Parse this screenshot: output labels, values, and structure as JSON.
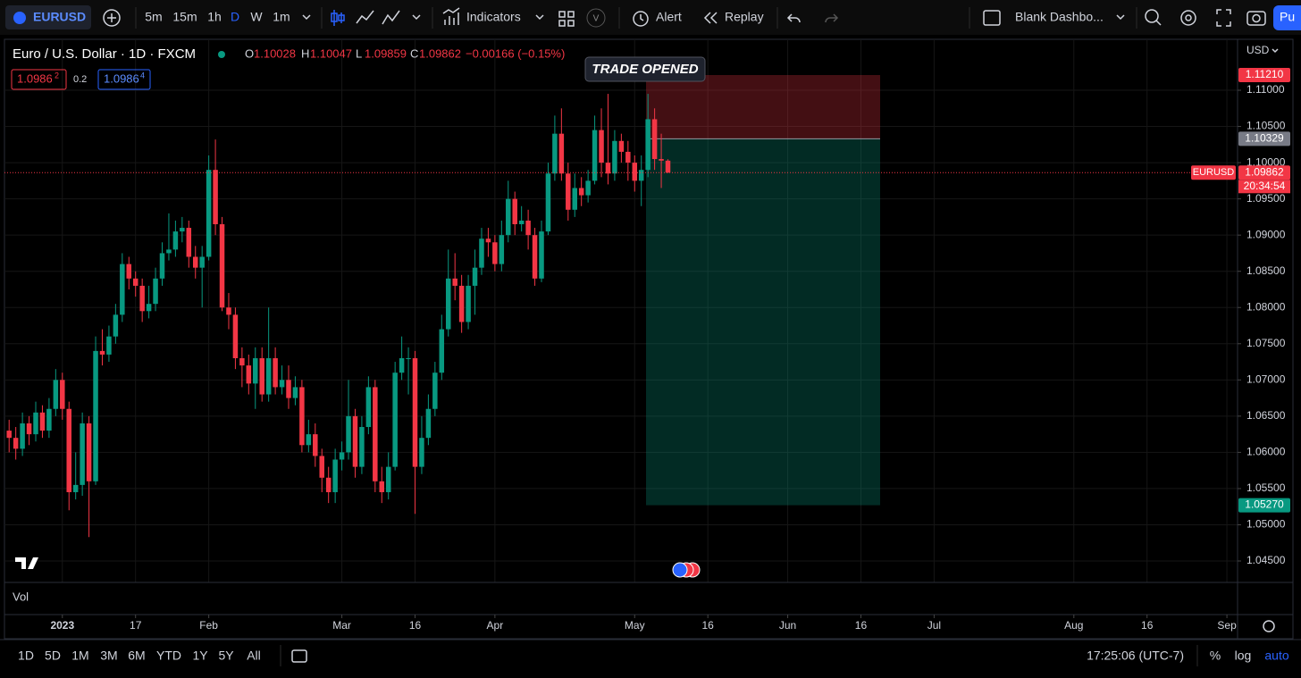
{
  "toolbar": {
    "symbol": "EURUSD",
    "intervals": [
      "5m",
      "15m",
      "1h",
      "D",
      "W",
      "1m"
    ],
    "indicators": "Indicators",
    "alert": "Alert",
    "replay": "Replay",
    "layout": "Blank Dashbo...",
    "publish": "Pu",
    "volume_badge": "V"
  },
  "order_panel": {
    "sell": "1.0986",
    "sell_sup": "2",
    "spread": "0.2",
    "buy": "1.0986",
    "buy_sup": "4"
  },
  "chart_data": {
    "type": "candlestick",
    "title": "Euro / U.S. Dollar · 1D · FXCM",
    "currency": "USD",
    "ohlc_labels": [
      "O",
      "H",
      "L",
      "C"
    ],
    "change": "−0.00166 (−0.15%)",
    "colors": {
      "up": "#089981",
      "down": "#f23645"
    },
    "x": [
      0,
      1,
      2,
      3,
      4,
      5,
      6,
      7,
      8,
      9,
      10,
      11,
      12,
      13,
      14,
      15,
      16,
      17,
      18,
      19,
      20,
      21,
      22,
      23,
      24,
      25,
      26,
      27,
      28,
      29,
      30,
      31,
      32,
      33,
      34,
      35,
      36,
      37,
      38,
      39,
      40,
      41,
      42,
      43,
      44,
      45,
      46,
      47,
      48,
      49,
      50,
      51,
      52,
      53,
      54,
      55,
      56,
      57,
      58,
      59,
      60,
      61,
      62,
      63,
      64,
      65,
      66,
      67,
      68,
      69,
      70,
      71,
      72,
      73,
      74,
      75,
      76,
      77,
      78,
      79,
      80,
      81,
      82,
      83,
      84,
      85,
      86,
      87,
      88,
      89,
      90,
      91,
      92,
      93,
      94,
      95,
      96,
      97,
      98,
      99
    ],
    "open": [
      1.063,
      1.062,
      1.0605,
      1.064,
      1.0625,
      1.0655,
      1.063,
      1.066,
      1.07,
      1.066,
      1.0545,
      1.0555,
      1.064,
      1.056,
      1.074,
      1.0735,
      1.076,
      1.079,
      1.086,
      1.084,
      1.083,
      1.0795,
      1.0805,
      1.084,
      1.0875,
      1.088,
      1.0905,
      1.091,
      1.087,
      1.0855,
      1.087,
      1.099,
      1.0915,
      1.08,
      1.079,
      1.073,
      1.072,
      1.0695,
      1.073,
      1.068,
      1.073,
      1.069,
      1.07,
      1.0675,
      1.069,
      1.061,
      1.0625,
      1.0595,
      1.0565,
      1.0545,
      1.059,
      1.06,
      1.065,
      1.058,
      1.0635,
      1.069,
      1.056,
      1.0545,
      1.058,
      1.071,
      1.073,
      1.073,
      1.058,
      1.062,
      1.066,
      1.071,
      1.077,
      1.084,
      1.083,
      1.078,
      1.083,
      1.0855,
      1.0895,
      1.089,
      1.086,
      1.09,
      1.095,
      1.0915,
      1.092,
      1.09,
      1.084,
      1.0905,
      1.0985,
      1.104,
      1.0985,
      1.0935,
      1.0965,
      1.0955,
      1.0975,
      1.1045,
      1.1,
      1.0985,
      1.103,
      1.1015,
      1.1,
      1.0975,
      1.099,
      1.106,
      1.1005,
      1.10028
    ],
    "high": [
      1.0645,
      1.0635,
      1.0655,
      1.065,
      1.067,
      1.0665,
      1.0675,
      1.0715,
      1.071,
      1.067,
      1.06,
      1.0655,
      1.065,
      1.076,
      1.077,
      1.0775,
      1.0805,
      1.0875,
      1.087,
      1.085,
      1.084,
      1.083,
      1.0855,
      1.089,
      1.093,
      1.092,
      1.0925,
      1.092,
      1.0885,
      1.0885,
      1.101,
      1.1032,
      1.0925,
      1.082,
      1.08,
      1.0745,
      1.0735,
      1.0745,
      1.0745,
      1.08,
      1.0745,
      1.072,
      1.072,
      1.0705,
      1.07,
      1.0645,
      1.064,
      1.0605,
      1.058,
      1.0605,
      1.0615,
      1.07,
      1.066,
      1.065,
      1.0705,
      1.07,
      1.058,
      1.06,
      1.0725,
      1.076,
      1.0745,
      1.074,
      1.065,
      1.068,
      1.0725,
      1.079,
      1.088,
      1.0875,
      1.0845,
      1.0845,
      1.088,
      1.091,
      1.091,
      1.09,
      1.092,
      1.0975,
      1.096,
      1.094,
      1.0935,
      1.091,
      1.092,
      1.1,
      1.1065,
      1.1075,
      1.1,
      1.0985,
      1.098,
      1.099,
      1.1065,
      1.1075,
      1.1095,
      1.1045,
      1.104,
      1.103,
      1.101,
      1.101,
      1.1095,
      1.1075,
      1.104,
      1.10047
    ],
    "low": [
      1.06,
      1.059,
      1.0595,
      1.061,
      1.0615,
      1.062,
      1.062,
      1.065,
      1.0645,
      1.052,
      1.0535,
      1.054,
      1.0483,
      1.0555,
      1.072,
      1.0725,
      1.075,
      1.078,
      1.0825,
      1.0815,
      1.078,
      1.0785,
      1.0795,
      1.083,
      1.0865,
      1.087,
      1.089,
      1.0855,
      1.084,
      1.08,
      1.0865,
      1.09,
      1.0795,
      1.077,
      1.0715,
      1.069,
      1.068,
      1.066,
      1.067,
      1.067,
      1.068,
      1.068,
      1.066,
      1.0665,
      1.06,
      1.06,
      1.058,
      1.0545,
      1.053,
      1.053,
      1.0575,
      1.059,
      1.0565,
      1.057,
      1.0625,
      1.0545,
      1.053,
      1.0535,
      1.0575,
      1.07,
      1.068,
      1.0515,
      1.057,
      1.061,
      1.065,
      1.07,
      1.076,
      1.081,
      1.0765,
      1.077,
      1.079,
      1.0845,
      1.087,
      1.085,
      1.085,
      1.089,
      1.09,
      1.0905,
      1.088,
      1.083,
      1.0835,
      1.09,
      1.0975,
      1.0975,
      1.092,
      1.0925,
      1.094,
      1.0945,
      1.097,
      1.098,
      1.097,
      1.0975,
      1.1,
      1.0975,
      1.096,
      1.094,
      1.098,
      1.099,
      1.0965,
      1.09859
    ],
    "close": [
      1.062,
      1.0605,
      1.064,
      1.0625,
      1.0655,
      1.063,
      1.066,
      1.07,
      1.066,
      1.0545,
      1.0555,
      1.064,
      1.056,
      1.074,
      1.0735,
      1.076,
      1.079,
      1.086,
      1.084,
      1.083,
      1.0795,
      1.0805,
      1.084,
      1.0875,
      1.088,
      1.0905,
      1.091,
      1.087,
      1.0855,
      1.087,
      1.099,
      1.0915,
      1.08,
      1.079,
      1.073,
      1.072,
      1.0695,
      1.073,
      1.068,
      1.073,
      1.069,
      1.07,
      1.0675,
      1.069,
      1.061,
      1.0625,
      1.0595,
      1.0565,
      1.0545,
      1.059,
      1.06,
      1.065,
      1.058,
      1.0635,
      1.069,
      1.056,
      1.0545,
      1.058,
      1.071,
      1.073,
      1.073,
      1.058,
      1.062,
      1.066,
      1.071,
      1.077,
      1.084,
      1.083,
      1.078,
      1.083,
      1.0855,
      1.0895,
      1.089,
      1.086,
      1.09,
      1.095,
      1.0915,
      1.092,
      1.09,
      1.084,
      1.0905,
      1.0985,
      1.104,
      1.0985,
      1.0935,
      1.0965,
      1.0955,
      1.0975,
      1.1045,
      1.1,
      1.0985,
      1.103,
      1.1015,
      1.1,
      1.0975,
      1.099,
      1.106,
      1.1005,
      1.10028,
      1.09862
    ],
    "xlim": [
      -0.7,
      184.6
    ],
    "xticks": [
      {
        "value": 8,
        "label": "2023"
      },
      {
        "value": 19,
        "label": "17"
      },
      {
        "value": 30,
        "label": "Feb"
      },
      {
        "value": 50,
        "label": "Mar"
      },
      {
        "value": 61,
        "label": "16"
      },
      {
        "value": 73,
        "label": "Apr"
      },
      {
        "value": 94,
        "label": "May"
      },
      {
        "value": 105,
        "label": "16"
      },
      {
        "value": 117,
        "label": "Jun"
      },
      {
        "value": 128,
        "label": "16"
      },
      {
        "value": 139,
        "label": "Jul"
      },
      {
        "value": 160,
        "label": "Aug"
      },
      {
        "value": 171,
        "label": "16"
      },
      {
        "value": 183,
        "label": "Sep"
      }
    ],
    "ylim": [
      1.04204,
      1.11691
    ],
    "yticks": [
      {
        "value": 1.11,
        "label": "1.11000"
      },
      {
        "value": 1.105,
        "label": "1.10500"
      },
      {
        "value": 1.1,
        "label": "1.10000"
      },
      {
        "value": 1.095,
        "label": "1.09500"
      },
      {
        "value": 1.09,
        "label": "1.09000"
      },
      {
        "value": 1.085,
        "label": "1.08500"
      },
      {
        "value": 1.08,
        "label": "1.08000"
      },
      {
        "value": 1.075,
        "label": "1.07500"
      },
      {
        "value": 1.07,
        "label": "1.07000"
      },
      {
        "value": 1.065,
        "label": "1.06500"
      },
      {
        "value": 1.06,
        "label": "1.06000"
      },
      {
        "value": 1.055,
        "label": "1.05500"
      },
      {
        "value": 1.05,
        "label": "1.05000"
      },
      {
        "value": 1.045,
        "label": "1.04500"
      }
    ],
    "grid": true,
    "symbol_tag": "EURUSD",
    "countdown": "20:34:54",
    "position": {
      "label": "TRADE OPENED",
      "stop": {
        "value": 1.1121,
        "label": "1.11210"
      },
      "entry": 1.10329,
      "target": {
        "value": 1.0527,
        "label": "1.05270"
      }
    },
    "volume_label": "Vol"
  },
  "bottom_bar": {
    "ranges": [
      "1D",
      "5D",
      "1M",
      "3M",
      "6M",
      "YTD",
      "1Y",
      "5Y",
      "All"
    ],
    "clock": "17:25:06 (UTC-7)",
    "percent": "%",
    "log": "log",
    "auto": "auto"
  }
}
